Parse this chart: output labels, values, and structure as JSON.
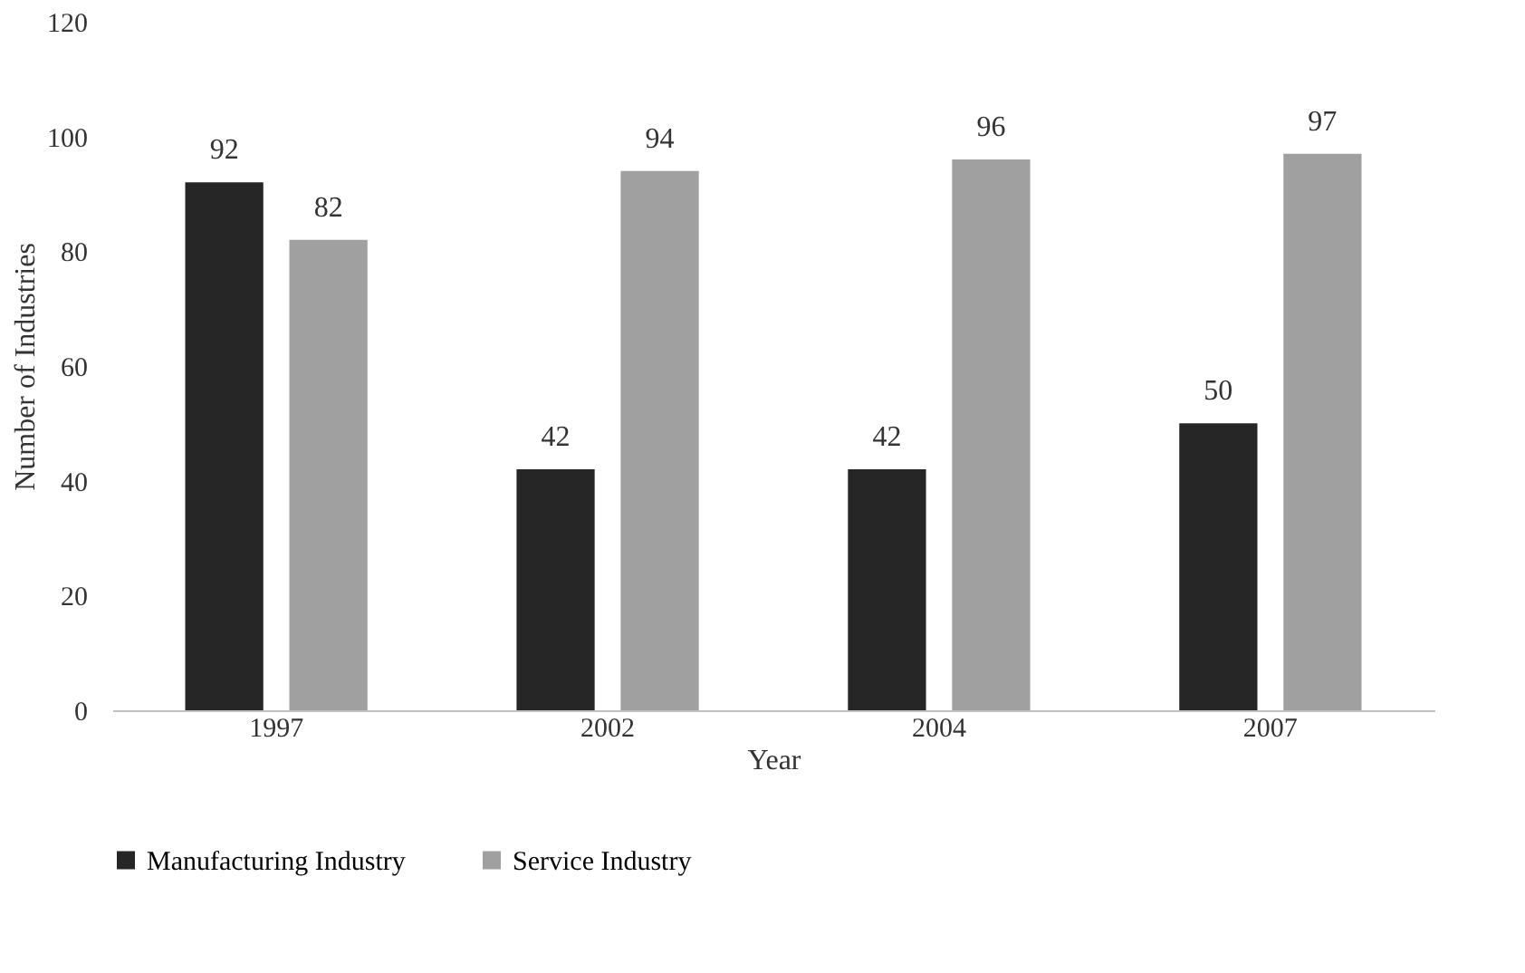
{
  "chart_data": {
    "type": "bar",
    "xlabel": "Year",
    "ylabel": "Number of Industries",
    "categories": [
      "1997",
      "2002",
      "2004",
      "2007"
    ],
    "series": [
      {
        "name": "Manufacturing Industry",
        "color": "#262626",
        "values": [
          92,
          42,
          42,
          50
        ]
      },
      {
        "name": "Service Industry",
        "color": "#a0a0a0",
        "values": [
          82,
          94,
          96,
          97
        ]
      }
    ],
    "ylim": [
      0,
      120
    ],
    "yticks": [
      0,
      20,
      40,
      60,
      80,
      100,
      120
    ],
    "grid": false,
    "legend": "bottom",
    "data_labels": true
  }
}
